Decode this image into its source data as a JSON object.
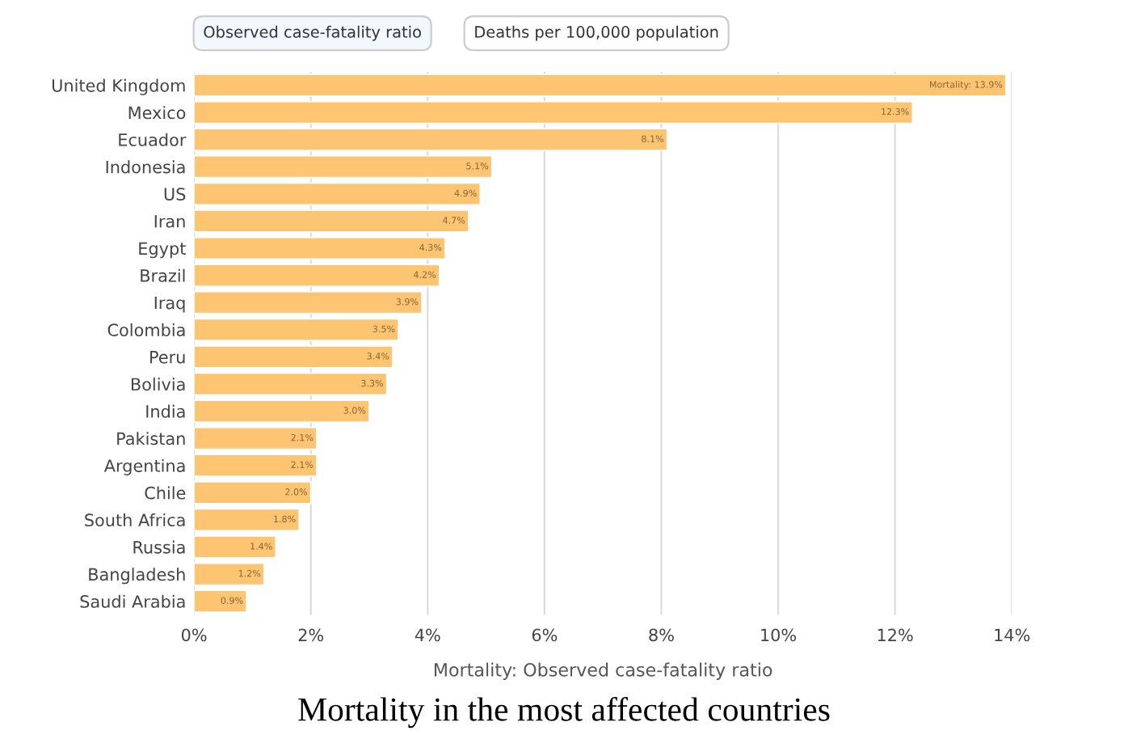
{
  "chart_data": {
    "type": "bar",
    "orientation": "horizontal",
    "title": "Mortality in the most affected countries",
    "xlabel": "Mortality: Observed case-fatality ratio",
    "annotations": [
      "Observed case-fatality ratio",
      "Deaths per 100,000 population"
    ],
    "categories": [
      "United Kingdom",
      "Mexico",
      "Ecuador",
      "Indonesia",
      "US",
      "Iran",
      "Egypt",
      "Brazil",
      "Iraq",
      "Colombia",
      "Peru",
      "Bolivia",
      "India",
      "Pakistan",
      "Argentina",
      "Chile",
      "South Africa",
      "Russia",
      "Bangladesh",
      "Saudi Arabia"
    ],
    "values": [
      13.9,
      12.3,
      8.1,
      5.1,
      4.9,
      4.7,
      4.3,
      4.2,
      3.9,
      3.5,
      3.4,
      3.3,
      3.0,
      2.1,
      2.1,
      2.0,
      1.8,
      1.4,
      1.2,
      0.9
    ],
    "value_labels": [
      "Mortality: 13.9%",
      "12.3%",
      "8.1%",
      "5.1%",
      "4.9%",
      "4.7%",
      "4.3%",
      "4.2%",
      "3.9%",
      "3.5%",
      "3.4%",
      "3.3%",
      "3.0%",
      "2.1%",
      "2.1%",
      "2.0%",
      "1.8%",
      "1.4%",
      "1.2%",
      "0.9%"
    ],
    "color": "#fdc472",
    "xlim": [
      0,
      14
    ],
    "xticks": [
      {
        "value": 0,
        "label": "0%"
      },
      {
        "value": 2,
        "label": "2%"
      },
      {
        "value": 4,
        "label": "4%"
      },
      {
        "value": 6,
        "label": "6%"
      },
      {
        "value": 8,
        "label": "8%"
      },
      {
        "value": 10,
        "label": "10%"
      },
      {
        "value": 12,
        "label": "12%"
      },
      {
        "value": 14,
        "label": "14%"
      }
    ],
    "grid": "x"
  }
}
